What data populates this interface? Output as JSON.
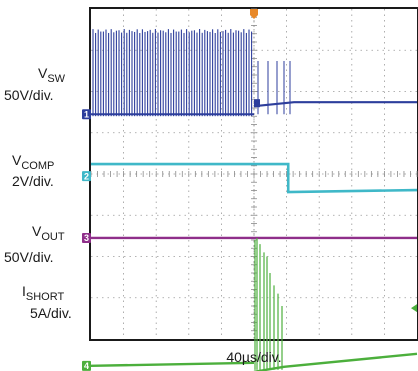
{
  "chart_data": {
    "type": "line",
    "x_scale_label": "40µs/div.",
    "x_divisions": 10,
    "y_divisions": 8,
    "trigger_division": 5,
    "trigger_color": "#e8892a",
    "grid": true,
    "channels": [
      {
        "id": "1",
        "name_main": "V",
        "name_sub": "SW",
        "scale": "50V/div.",
        "color": "#2d3e9c",
        "baseline_div": 2.55,
        "kind": "switching"
      },
      {
        "id": "2",
        "name_main": "V",
        "name_sub": "COMP",
        "scale": "2V/div.",
        "color": "#3fb8c8",
        "baseline_div": 4.05,
        "kind": "step_down"
      },
      {
        "id": "3",
        "name_main": "V",
        "name_sub": "OUT",
        "scale": "50V/div.",
        "color": "#8f2f8a",
        "baseline_div": 5.55,
        "kind": "flat"
      },
      {
        "id": "4",
        "name_main": "I",
        "name_sub": "SHORT",
        "scale": "5A/div.",
        "color": "#4caf3c",
        "baseline_div": 8.65,
        "kind": "spikes"
      }
    ]
  }
}
